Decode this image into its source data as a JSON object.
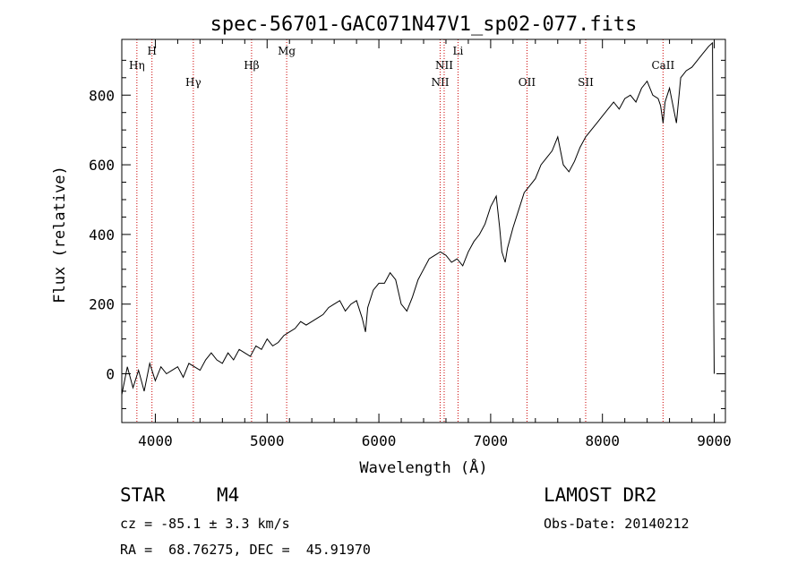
{
  "chart_data": {
    "type": "line",
    "title": "spec-56701-GAC071N47V1_sp02-077.fits",
    "xlabel": "Wavelength (Å)",
    "ylabel": "Flux (relative)",
    "xlim": [
      3700,
      9100
    ],
    "ylim": [
      -140,
      960
    ],
    "x_ticks": [
      4000,
      5000,
      6000,
      7000,
      8000,
      9000
    ],
    "y_ticks": [
      0,
      200,
      400,
      600,
      800
    ],
    "grid": false,
    "line_color": "#000000",
    "marker_color": "#cc0000",
    "spectral_lines": [
      {
        "name": "Hη",
        "wavelength": 3835,
        "tier": 2
      },
      {
        "name": "H",
        "wavelength": 3970,
        "tier": 1
      },
      {
        "name": "Hγ",
        "wavelength": 4340,
        "tier": 3
      },
      {
        "name": "Hβ",
        "wavelength": 4861,
        "tier": 2
      },
      {
        "name": "Mg",
        "wavelength": 5175,
        "tier": 1
      },
      {
        "name": "NII",
        "wavelength": 6548,
        "tier": 3
      },
      {
        "name": "NII",
        "wavelength": 6584,
        "tier": 2
      },
      {
        "name": "Li",
        "wavelength": 6708,
        "tier": 1
      },
      {
        "name": "OII",
        "wavelength": 7325,
        "tier": 3
      },
      {
        "name": "SII",
        "wavelength": 7850,
        "tier": 3
      },
      {
        "name": "CaII",
        "wavelength": 8542,
        "tier": 2
      }
    ],
    "series": [
      {
        "x": [
          3700,
          3750,
          3800,
          3850,
          3900,
          3950,
          4000,
          4050,
          4100,
          4150,
          4200,
          4250,
          4300,
          4350,
          4400,
          4450,
          4500,
          4550,
          4600,
          4650,
          4700,
          4750,
          4800,
          4850,
          4900,
          4950,
          5000,
          5050,
          5100,
          5150,
          5200,
          5250,
          5300,
          5350,
          5400,
          5450,
          5500,
          5550,
          5600,
          5650,
          5700,
          5750,
          5800,
          5850,
          5880,
          5900,
          5950,
          6000,
          6050,
          6100,
          6150,
          6200,
          6250,
          6300,
          6350,
          6400,
          6450,
          6500,
          6550,
          6600,
          6650,
          6700,
          6750,
          6800,
          6850,
          6900,
          6950,
          7000,
          7050,
          7080,
          7100,
          7130,
          7150,
          7200,
          7250,
          7300,
          7350,
          7400,
          7450,
          7500,
          7550,
          7600,
          7650,
          7700,
          7750,
          7800,
          7850,
          7900,
          7950,
          8000,
          8050,
          8100,
          8150,
          8200,
          8250,
          8300,
          8350,
          8400,
          8450,
          8498,
          8520,
          8542,
          8560,
          8600,
          8662,
          8700,
          8750,
          8800,
          8850,
          8900,
          8950,
          8985,
          8995,
          9000
        ],
        "y": [
          -60,
          20,
          -40,
          10,
          -50,
          30,
          -20,
          20,
          0,
          10,
          20,
          -10,
          30,
          20,
          10,
          40,
          60,
          40,
          30,
          60,
          40,
          70,
          60,
          50,
          80,
          70,
          100,
          80,
          90,
          110,
          120,
          130,
          150,
          140,
          150,
          160,
          170,
          190,
          200,
          210,
          180,
          200,
          210,
          160,
          120,
          190,
          240,
          260,
          260,
          290,
          270,
          200,
          180,
          220,
          270,
          300,
          330,
          340,
          350,
          340,
          320,
          330,
          310,
          350,
          380,
          400,
          430,
          480,
          510,
          420,
          350,
          320,
          360,
          420,
          470,
          520,
          540,
          560,
          600,
          620,
          640,
          680,
          600,
          580,
          610,
          650,
          680,
          700,
          720,
          740,
          760,
          780,
          760,
          790,
          800,
          780,
          820,
          840,
          800,
          790,
          770,
          720,
          780,
          820,
          720,
          850,
          870,
          880,
          900,
          920,
          940,
          950,
          200,
          0
        ]
      }
    ]
  },
  "footer": {
    "object_class": "STAR",
    "subclass": "M4",
    "survey": "LAMOST DR2",
    "cz": "cz = -85.1 ± 3.3 km/s",
    "obs_date": "Obs-Date: 20140212",
    "coords": "RA =  68.76275, DEC =  45.91970"
  }
}
